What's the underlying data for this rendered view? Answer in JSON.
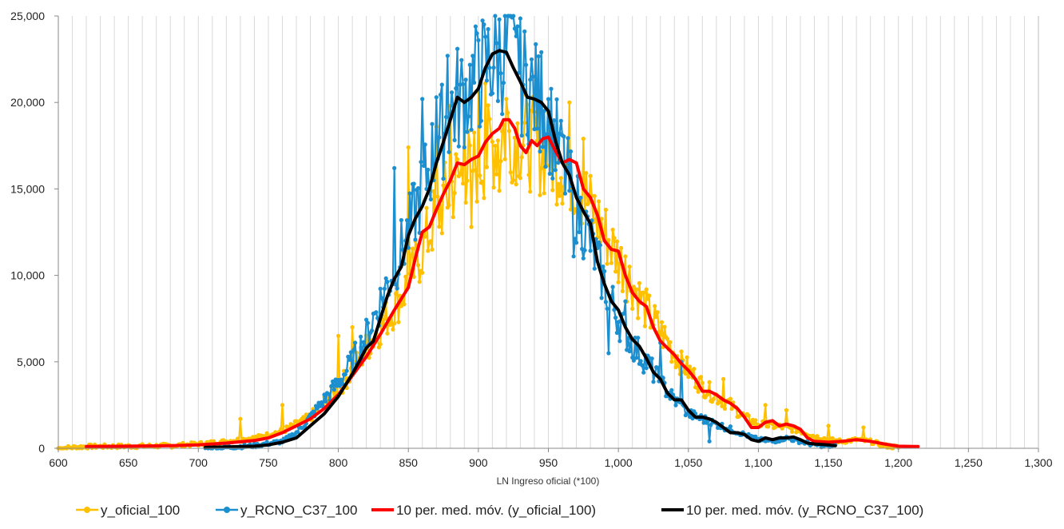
{
  "chart_data": {
    "type": "line",
    "title": "",
    "xlabel": "LN Ingreso oficial (*100)",
    "ylabel": "",
    "xlim": [
      600,
      1300
    ],
    "ylim": [
      0,
      25000
    ],
    "grid": "vertical minor every 10, major every 50",
    "x_ticks": [
      "600",
      "650",
      "700",
      "750",
      "800",
      "850",
      "900",
      "950",
      "1,000",
      "1,050",
      "1,100",
      "1,150",
      "1,200",
      "1,250",
      "1,300"
    ],
    "y_ticks": [
      "0",
      "5,000",
      "10,000",
      "15,000",
      "20,000",
      "25,000"
    ],
    "legend_position": "bottom",
    "series": [
      {
        "name": "y_oficial_100",
        "style": "line-marker",
        "color": "#FFC000",
        "anchors": [
          [
            600,
            0
          ],
          [
            620,
            100
          ],
          [
            650,
            120
          ],
          [
            680,
            150
          ],
          [
            700,
            250
          ],
          [
            720,
            400
          ],
          [
            740,
            600
          ],
          [
            760,
            1000
          ],
          [
            780,
            1800
          ],
          [
            800,
            3500
          ],
          [
            810,
            4500
          ],
          [
            820,
            5800
          ],
          [
            830,
            7000
          ],
          [
            840,
            8200
          ],
          [
            850,
            9500
          ],
          [
            860,
            11500
          ],
          [
            870,
            13500
          ],
          [
            880,
            15000
          ],
          [
            890,
            16000
          ],
          [
            900,
            16500
          ],
          [
            910,
            17500
          ],
          [
            920,
            18500
          ],
          [
            930,
            18000
          ],
          [
            940,
            17500
          ],
          [
            950,
            17000
          ],
          [
            960,
            16500
          ],
          [
            970,
            15500
          ],
          [
            980,
            14000
          ],
          [
            990,
            12500
          ],
          [
            1000,
            11000
          ],
          [
            1010,
            9500
          ],
          [
            1020,
            8000
          ],
          [
            1030,
            6800
          ],
          [
            1040,
            5500
          ],
          [
            1050,
            4500
          ],
          [
            1060,
            3600
          ],
          [
            1070,
            3000
          ],
          [
            1080,
            2500
          ],
          [
            1090,
            1800
          ],
          [
            1100,
            1400
          ],
          [
            1110,
            1300
          ],
          [
            1120,
            1200
          ],
          [
            1130,
            1000
          ],
          [
            1140,
            700
          ],
          [
            1150,
            500
          ],
          [
            1160,
            400
          ],
          [
            1170,
            500
          ],
          [
            1180,
            400
          ],
          [
            1190,
            150
          ],
          [
            1200,
            50
          ]
        ],
        "spikes": [
          [
            730,
            1700
          ],
          [
            760,
            2500
          ],
          [
            800,
            6500
          ],
          [
            810,
            7000
          ],
          [
            850,
            17400
          ],
          [
            870,
            18600
          ],
          [
            880,
            19800
          ],
          [
            890,
            20900
          ],
          [
            895,
            12800
          ],
          [
            900,
            20600
          ],
          [
            905,
            21100
          ],
          [
            915,
            14900
          ],
          [
            920,
            20200
          ],
          [
            925,
            15500
          ],
          [
            950,
            19400
          ],
          [
            965,
            20000
          ],
          [
            975,
            17900
          ],
          [
            1005,
            11100
          ],
          [
            1045,
            5600
          ],
          [
            1075,
            4000
          ],
          [
            1105,
            2500
          ],
          [
            1120,
            2200
          ],
          [
            1150,
            1300
          ],
          [
            1175,
            1200
          ]
        ]
      },
      {
        "name": "y_RCNO_C37_100",
        "style": "line-marker",
        "color": "#1B8FCF",
        "anchors": [
          [
            705,
            0
          ],
          [
            720,
            50
          ],
          [
            740,
            150
          ],
          [
            760,
            400
          ],
          [
            770,
            900
          ],
          [
            780,
            1800
          ],
          [
            790,
            2800
          ],
          [
            800,
            3800
          ],
          [
            810,
            5000
          ],
          [
            820,
            6500
          ],
          [
            830,
            8500
          ],
          [
            840,
            10500
          ],
          [
            850,
            12500
          ],
          [
            860,
            15000
          ],
          [
            870,
            17500
          ],
          [
            880,
            19500
          ],
          [
            890,
            20500
          ],
          [
            900,
            21500
          ],
          [
            910,
            22500
          ],
          [
            920,
            23000
          ],
          [
            930,
            21500
          ],
          [
            940,
            20500
          ],
          [
            950,
            19000
          ],
          [
            960,
            16500
          ],
          [
            970,
            14000
          ],
          [
            980,
            12000
          ],
          [
            990,
            9500
          ],
          [
            1000,
            7500
          ],
          [
            1010,
            6000
          ],
          [
            1020,
            5000
          ],
          [
            1030,
            3800
          ],
          [
            1040,
            2800
          ],
          [
            1050,
            2000
          ],
          [
            1060,
            1700
          ],
          [
            1070,
            1400
          ],
          [
            1080,
            1100
          ],
          [
            1090,
            800
          ],
          [
            1100,
            500
          ],
          [
            1110,
            400
          ],
          [
            1120,
            600
          ],
          [
            1130,
            400
          ],
          [
            1140,
            200
          ],
          [
            1150,
            150
          ],
          [
            1155,
            100
          ]
        ],
        "spikes": [
          [
            840,
            16200
          ],
          [
            860,
            20200
          ],
          [
            870,
            20300
          ],
          [
            878,
            22700
          ],
          [
            885,
            23100
          ],
          [
            900,
            23600
          ],
          [
            905,
            23800
          ],
          [
            915,
            24800
          ],
          [
            922,
            25000
          ],
          [
            928,
            24400
          ],
          [
            945,
            22900
          ],
          [
            960,
            18100
          ],
          [
            968,
            11100
          ],
          [
            993,
            5500
          ],
          [
            1005,
            8500
          ],
          [
            1030,
            6100
          ],
          [
            1045,
            5000
          ],
          [
            1065,
            400
          ]
        ]
      },
      {
        "name": "10 per. med. móv. (y_oficial_100)",
        "style": "line",
        "color": "#FF0000",
        "points": [
          [
            620,
            100
          ],
          [
            650,
            120
          ],
          [
            680,
            150
          ],
          [
            700,
            200
          ],
          [
            720,
            300
          ],
          [
            740,
            450
          ],
          [
            750,
            600
          ],
          [
            760,
            900
          ],
          [
            770,
            1300
          ],
          [
            780,
            1700
          ],
          [
            790,
            2300
          ],
          [
            800,
            3100
          ],
          [
            810,
            4200
          ],
          [
            820,
            5300
          ],
          [
            830,
            6600
          ],
          [
            840,
            8000
          ],
          [
            850,
            9300
          ],
          [
            855,
            11000
          ],
          [
            860,
            12500
          ],
          [
            865,
            12800
          ],
          [
            870,
            13800
          ],
          [
            875,
            14700
          ],
          [
            880,
            15500
          ],
          [
            885,
            16500
          ],
          [
            890,
            16400
          ],
          [
            895,
            16700
          ],
          [
            900,
            16900
          ],
          [
            905,
            17700
          ],
          [
            910,
            18200
          ],
          [
            915,
            18500
          ],
          [
            918,
            19000
          ],
          [
            922,
            19000
          ],
          [
            926,
            18500
          ],
          [
            930,
            17500
          ],
          [
            934,
            17100
          ],
          [
            938,
            17800
          ],
          [
            942,
            17500
          ],
          [
            946,
            17900
          ],
          [
            950,
            18000
          ],
          [
            955,
            17200
          ],
          [
            960,
            16500
          ],
          [
            965,
            16700
          ],
          [
            970,
            16500
          ],
          [
            975,
            15000
          ],
          [
            980,
            14500
          ],
          [
            985,
            13500
          ],
          [
            990,
            12000
          ],
          [
            995,
            11500
          ],
          [
            1000,
            11400
          ],
          [
            1005,
            10000
          ],
          [
            1010,
            9000
          ],
          [
            1015,
            8500
          ],
          [
            1020,
            8200
          ],
          [
            1025,
            7000
          ],
          [
            1030,
            6200
          ],
          [
            1035,
            5800
          ],
          [
            1040,
            5400
          ],
          [
            1045,
            4900
          ],
          [
            1050,
            4500
          ],
          [
            1055,
            4000
          ],
          [
            1060,
            3300
          ],
          [
            1065,
            3300
          ],
          [
            1070,
            3100
          ],
          [
            1075,
            2800
          ],
          [
            1080,
            2600
          ],
          [
            1085,
            2300
          ],
          [
            1090,
            1800
          ],
          [
            1095,
            1200
          ],
          [
            1100,
            1200
          ],
          [
            1105,
            1500
          ],
          [
            1110,
            1600
          ],
          [
            1115,
            1300
          ],
          [
            1120,
            1400
          ],
          [
            1125,
            1300
          ],
          [
            1130,
            1100
          ],
          [
            1135,
            600
          ],
          [
            1140,
            400
          ],
          [
            1150,
            350
          ],
          [
            1160,
            400
          ],
          [
            1170,
            500
          ],
          [
            1180,
            400
          ],
          [
            1190,
            250
          ],
          [
            1200,
            120
          ],
          [
            1214,
            100
          ]
        ]
      },
      {
        "name": "10 per. med. móv. (y_RCNO_C37_100)",
        "style": "line",
        "color": "#000000",
        "points": [
          [
            705,
            50
          ],
          [
            720,
            80
          ],
          [
            740,
            120
          ],
          [
            750,
            200
          ],
          [
            760,
            350
          ],
          [
            770,
            600
          ],
          [
            780,
            1300
          ],
          [
            790,
            2000
          ],
          [
            800,
            3000
          ],
          [
            810,
            4300
          ],
          [
            820,
            5800
          ],
          [
            825,
            6200
          ],
          [
            830,
            7500
          ],
          [
            835,
            8800
          ],
          [
            840,
            9800
          ],
          [
            845,
            10500
          ],
          [
            850,
            12300
          ],
          [
            855,
            13300
          ],
          [
            860,
            14000
          ],
          [
            865,
            15000
          ],
          [
            870,
            16500
          ],
          [
            875,
            17700
          ],
          [
            880,
            19000
          ],
          [
            885,
            20300
          ],
          [
            890,
            20000
          ],
          [
            895,
            20300
          ],
          [
            900,
            20800
          ],
          [
            905,
            22000
          ],
          [
            910,
            22800
          ],
          [
            915,
            23000
          ],
          [
            920,
            22900
          ],
          [
            925,
            22000
          ],
          [
            930,
            21200
          ],
          [
            935,
            20300
          ],
          [
            940,
            20200
          ],
          [
            945,
            20000
          ],
          [
            950,
            19500
          ],
          [
            955,
            17800
          ],
          [
            960,
            16500
          ],
          [
            965,
            15800
          ],
          [
            970,
            14500
          ],
          [
            975,
            13700
          ],
          [
            980,
            13000
          ],
          [
            985,
            10800
          ],
          [
            990,
            9500
          ],
          [
            995,
            8500
          ],
          [
            1000,
            8000
          ],
          [
            1005,
            7000
          ],
          [
            1010,
            6300
          ],
          [
            1015,
            5900
          ],
          [
            1020,
            5200
          ],
          [
            1025,
            4400
          ],
          [
            1030,
            4000
          ],
          [
            1035,
            3200
          ],
          [
            1040,
            2800
          ],
          [
            1045,
            2800
          ],
          [
            1050,
            2200
          ],
          [
            1055,
            1800
          ],
          [
            1060,
            1800
          ],
          [
            1065,
            1700
          ],
          [
            1070,
            1500
          ],
          [
            1075,
            1200
          ],
          [
            1080,
            900
          ],
          [
            1085,
            900
          ],
          [
            1090,
            800
          ],
          [
            1095,
            500
          ],
          [
            1100,
            400
          ],
          [
            1105,
            600
          ],
          [
            1110,
            500
          ],
          [
            1115,
            600
          ],
          [
            1120,
            600
          ],
          [
            1125,
            650
          ],
          [
            1130,
            500
          ],
          [
            1135,
            300
          ],
          [
            1140,
            250
          ],
          [
            1150,
            200
          ],
          [
            1155,
            150
          ]
        ]
      }
    ]
  },
  "legend": {
    "items": [
      {
        "label": "y_oficial_100",
        "color": "#FFC000",
        "marker": true
      },
      {
        "label": "y_RCNO_C37_100",
        "color": "#1B8FCF",
        "marker": true
      },
      {
        "label": "10 per. med. móv. (y_oficial_100)",
        "color": "#FF0000",
        "marker": false
      },
      {
        "label": "10 per. med. móv. (y_RCNO_C37_100)",
        "color": "#000000",
        "marker": false
      }
    ]
  }
}
